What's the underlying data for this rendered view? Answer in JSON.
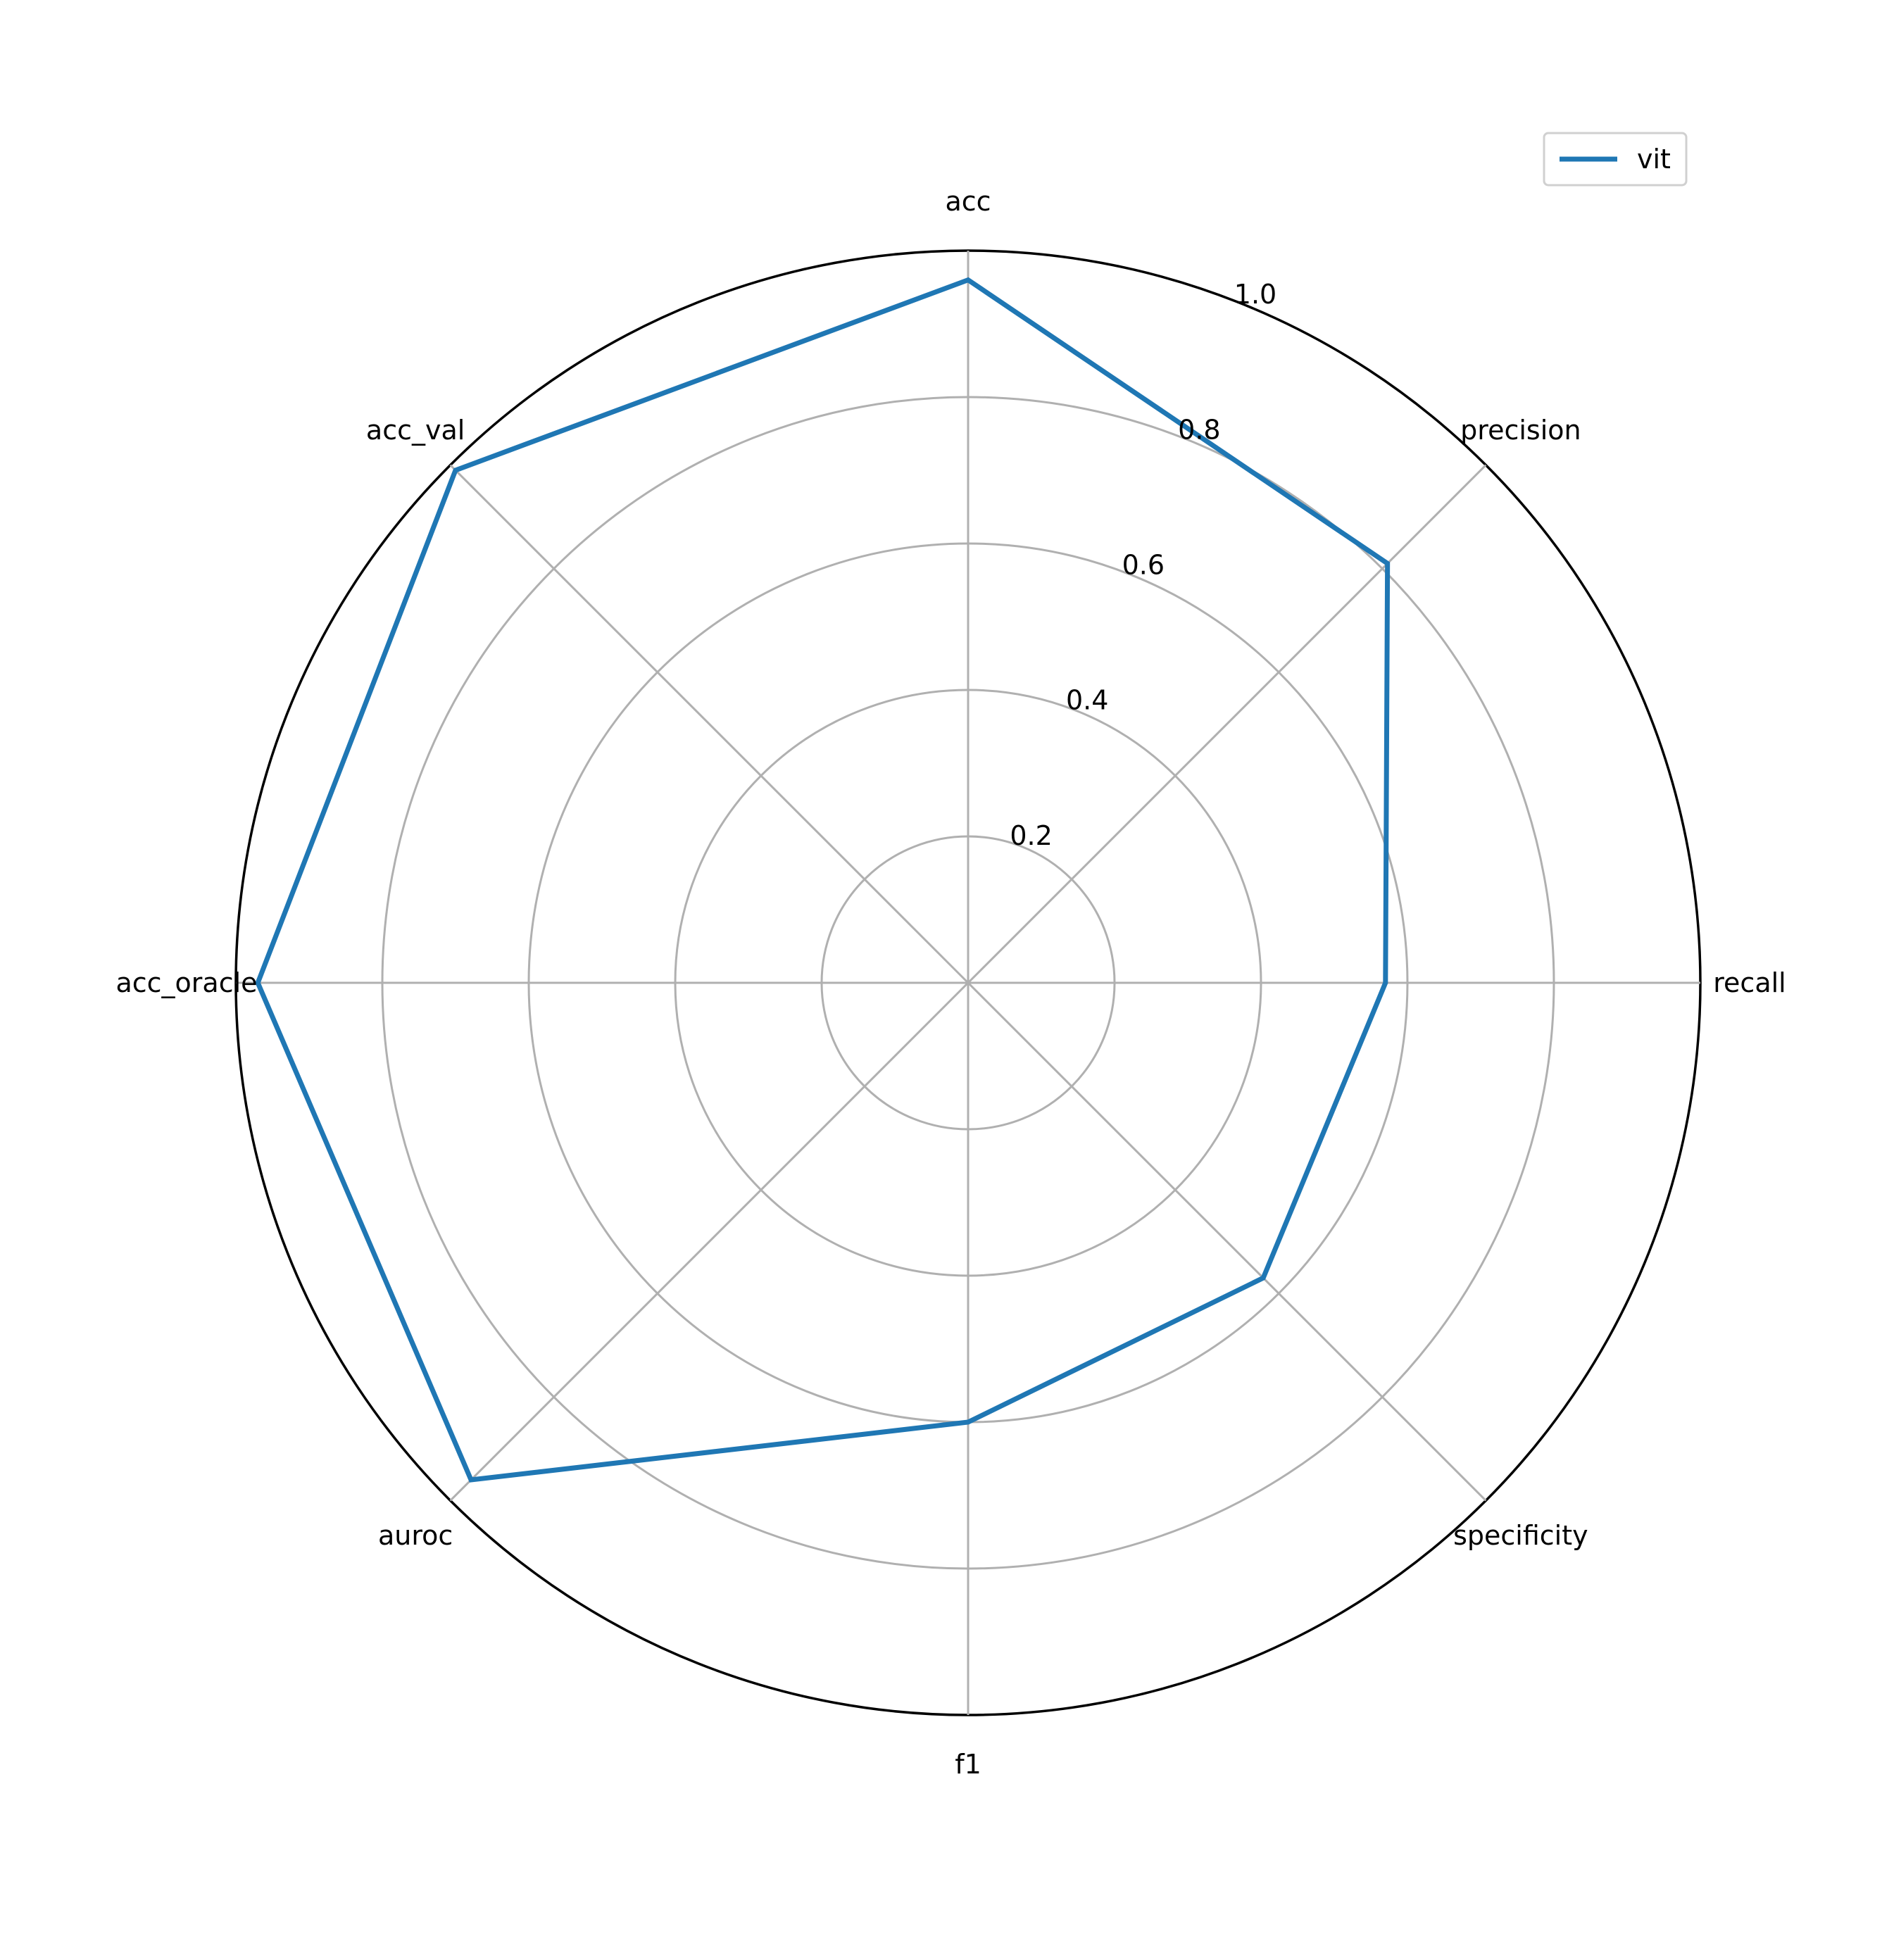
{
  "chart_data": {
    "type": "radar",
    "axes": [
      "acc",
      "precision",
      "recall",
      "specificity",
      "f1",
      "auroc",
      "acc_oracle",
      "acc_val"
    ],
    "rlim": [
      0,
      1.0
    ],
    "rticks": [
      0.2,
      0.4,
      0.6,
      0.8,
      1.0
    ],
    "rtick_labels": [
      "0.2",
      "0.4",
      "0.6",
      "0.8",
      "1.0"
    ],
    "grid": true,
    "legend_position": "top-right",
    "series": [
      {
        "name": "vit",
        "color": "#1f77b4",
        "values": [
          0.96,
          0.81,
          0.57,
          0.57,
          0.6,
          0.96,
          0.97,
          0.99
        ]
      }
    ]
  }
}
